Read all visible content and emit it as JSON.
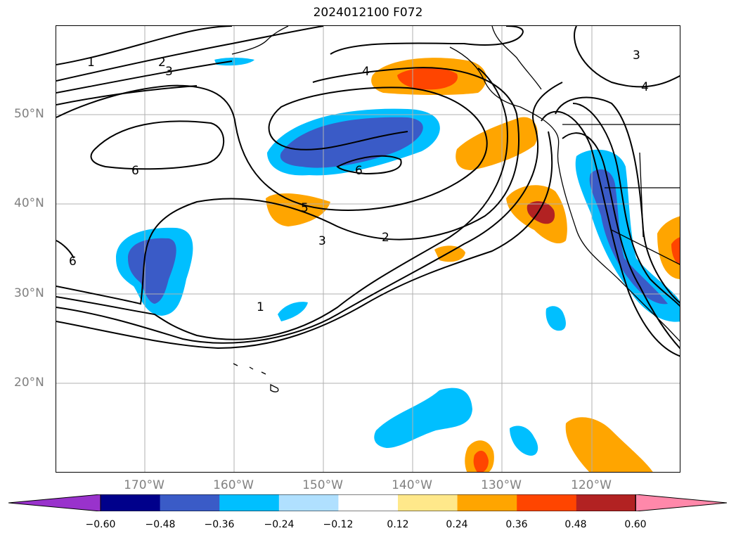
{
  "title": "2024012100 F072",
  "latitude_labels": [
    "50°N",
    "40°N",
    "30°N",
    "20°N"
  ],
  "longitude_labels": [
    "170°W",
    "160°W",
    "150°W",
    "140°W",
    "130°W",
    "120°W"
  ],
  "contour_labels": [
    "1",
    "2",
    "3",
    "4",
    "5",
    "6"
  ],
  "colorbar": {
    "ticks": [
      "−0.60",
      "−0.48",
      "−0.36",
      "−0.24",
      "−0.12",
      "0.12",
      "0.24",
      "0.36",
      "0.48",
      "0.60"
    ],
    "colors": [
      "#9932cc",
      "#00008b",
      "#3a5bc7",
      "#00bfff",
      "#b0e0ff",
      "#ffffff",
      "#ffe88a",
      "#ffa500",
      "#ff4500",
      "#b22222",
      "#ff88aa"
    ],
    "extend": "both"
  },
  "gridlines": true,
  "coastlines": true
}
